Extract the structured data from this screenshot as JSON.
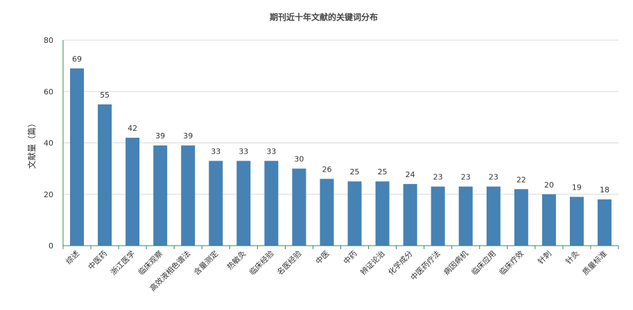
{
  "chart_data": {
    "type": "bar",
    "title": "期刊近十年文献的关键词分布",
    "xlabel": "",
    "ylabel": "文献量（篇）",
    "ylim": [
      0,
      80
    ],
    "yticks": [
      0,
      20,
      40,
      60,
      80
    ],
    "grid": true,
    "legend": "none",
    "categories": [
      "综述",
      "中医药",
      "浙江医学",
      "临床观察",
      "高效液相色谱法",
      "含量测定",
      "热敏灸",
      "临床经验",
      "名医经验",
      "中医",
      "中药",
      "辨证论治",
      "化学成分",
      "中医药疗法",
      "病因病机",
      "临床应用",
      "临床疗效",
      "针刺",
      "针灸",
      "质量标准"
    ],
    "values": [
      69,
      55,
      42,
      39,
      39,
      33,
      33,
      33,
      30,
      26,
      25,
      25,
      24,
      23,
      23,
      23,
      22,
      20,
      19,
      18
    ],
    "bar_color": "#4682b4",
    "axis_color": "#2e8b57"
  }
}
